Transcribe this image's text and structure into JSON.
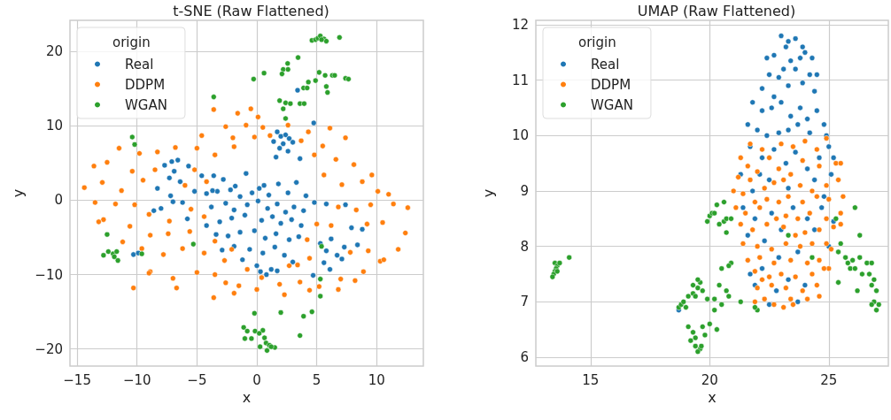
{
  "chart_data": [
    {
      "type": "scatter",
      "title": "t-SNE (Raw Flattened)",
      "xlabel": "x",
      "ylabel": "y",
      "legend_title": "origin",
      "legend": "top left",
      "grid": true,
      "marker": "circle",
      "xlim": [
        -15.6,
        13.9
      ],
      "ylim": [
        -22.3,
        24.2
      ],
      "xticks": [
        {
          "value": -15,
          "label": "−15"
        },
        {
          "value": -10,
          "label": "−10"
        },
        {
          "value": -5,
          "label": "−5"
        },
        0,
        5,
        10
      ],
      "yticks": [
        {
          "value": -20,
          "label": "−20"
        },
        {
          "value": -10,
          "label": "−10"
        },
        0,
        10,
        20
      ],
      "series": [
        {
          "name": "Real",
          "color": "#1f77b4",
          "x": [
            1.7,
            2.0,
            2.4,
            2.7,
            1.4,
            2.2,
            3.0,
            1.9,
            2.6,
            3.6,
            1.6,
            3.4,
            4.75,
            -7.1,
            -6.6,
            -7.7,
            -6.9,
            -7.3,
            -5.7,
            -4.6,
            -5.2,
            -6.4,
            -8.3,
            -7.2,
            -6.2,
            -8.0,
            -8.6,
            -5.8,
            -7.0,
            -3.6,
            -2.8,
            -1.8,
            -0.9,
            0.6,
            -2.2,
            -3.3,
            -4.2,
            -1.4,
            -0.4,
            0.2,
            1.0,
            1.8,
            2.6,
            3.3,
            4.1,
            -3.8,
            -2.6,
            -1.9,
            -0.8,
            0.1,
            0.9,
            1.7,
            2.4,
            3.1,
            3.9,
            4.8,
            5.8,
            -4.2,
            -3.1,
            -2.1,
            -1.0,
            0.4,
            1.3,
            2.0,
            2.9,
            3.7,
            -3.4,
            -2.4,
            -1.4,
            -0.2,
            0.7,
            1.6,
            2.7,
            3.5,
            -1.9,
            -0.6,
            0.5,
            1.5,
            2.3,
            -1.2,
            0.0,
            1.2,
            0.3,
            0.8,
            1.7,
            3.0,
            -2.9,
            5.3,
            6.2,
            5.8,
            6.7,
            5.6,
            6.1,
            7.1,
            7.3,
            8.4,
            4.7,
            7.9,
            8.8,
            7.4,
            -10.3,
            -3.7,
            -9.9
          ],
          "values": [
            9.2,
            8.6,
            8.8,
            8.3,
            7.9,
            7.6,
            7.8,
            7.0,
            6.6,
            5.6,
            5.8,
            14.8,
            10.4,
            5.2,
            5.4,
            4.7,
            3.9,
            3.0,
            4.6,
            3.3,
            1.2,
            2.5,
            1.6,
            0.6,
            -0.3,
            -1.1,
            -1.4,
            -2.5,
            -0.2,
            3.3,
            2.8,
            1.9,
            3.6,
            2.0,
            1.4,
            1.2,
            0.9,
            0.5,
            1.0,
            1.6,
            0.7,
            2.2,
            1.0,
            2.4,
            0.6,
            -0.9,
            -0.4,
            -1.3,
            -0.6,
            -0.1,
            -1.1,
            -0.5,
            -1.6,
            -0.9,
            -1.4,
            -0.3,
            -0.5,
            -3.4,
            -2.9,
            -2.4,
            -2.0,
            -2.7,
            -2.2,
            -3.1,
            -2.6,
            -3.4,
            -4.6,
            -4.8,
            -4.3,
            -4.1,
            -5.1,
            -4.5,
            -5.3,
            -4.9,
            -6.2,
            -6.6,
            -7.1,
            -6.3,
            -7.4,
            -8.0,
            -8.8,
            -9.3,
            -9.6,
            -10.0,
            -9.5,
            -8.3,
            -6.7,
            -5.8,
            -5.2,
            -6.8,
            -7.4,
            -8.4,
            -9.3,
            -7.9,
            -6.3,
            -6.0,
            -10.1,
            -3.7,
            -3.9,
            -0.6,
            -7.3,
            1.3,
            -7.1
          ]
        },
        {
          "name": "DDPM",
          "color": "#ff7f0e",
          "x": [
            -2.6,
            -0.9,
            0.5,
            2.6,
            4.3,
            6.1,
            -3.6,
            -1.6,
            -0.5,
            0.1,
            -4.6,
            -2.0,
            -0.2,
            1.1,
            3.7,
            5.5,
            7.4,
            -11.5,
            -13.6,
            -12.5,
            -9.8,
            -8.3,
            -6.8,
            -5.0,
            -3.5,
            -1.9,
            4.8,
            6.6,
            8.1,
            9.6,
            -14.4,
            -12.9,
            -11.3,
            -9.5,
            -10.4,
            -8.5,
            -5.2,
            -6.0,
            -4.2,
            5.6,
            7.1,
            8.8,
            10.1,
            11.0,
            -13.5,
            -11.8,
            -10.2,
            -9.0,
            -7.3,
            -5.5,
            -4.4,
            6.8,
            8.3,
            9.5,
            11.4,
            12.6,
            -12.8,
            -10.6,
            -8.9,
            -7.4,
            -5.6,
            -3.5,
            -2.1,
            4.2,
            5.0,
            6.2,
            9.2,
            10.5,
            12.4,
            -11.2,
            -9.6,
            -7.8,
            -6.2,
            -4.4,
            -2.7,
            -0.8,
            2.7,
            4.4,
            7.8,
            9.3,
            11.8,
            10.3,
            -8.9,
            -7.0,
            -5.0,
            -3.5,
            -1.5,
            0.4,
            1.9,
            3.6,
            5.2,
            7.0,
            8.9,
            10.6,
            -10.3,
            -6.7,
            -3.6,
            -1.9,
            0.0,
            2.3,
            4.4,
            6.8,
            8.2,
            3.4,
            -2.6,
            -13.2,
            -9.0
          ],
          "values": [
            9.9,
            10.1,
            9.8,
            10.1,
            9.2,
            9.7,
            12.2,
            11.7,
            12.3,
            11.2,
            8.7,
            8.4,
            8.5,
            8.7,
            8.0,
            7.3,
            8.4,
            7.0,
            4.6,
            5.1,
            6.3,
            6.5,
            7.1,
            7.0,
            6.1,
            7.2,
            6.1,
            5.5,
            4.8,
            3.4,
            1.7,
            2.4,
            1.3,
            2.7,
            3.9,
            4.1,
            4.1,
            2.0,
            2.5,
            3.4,
            2.1,
            2.5,
            1.2,
            0.8,
            -0.3,
            -0.5,
            -0.6,
            -1.9,
            -2.8,
            -1.2,
            -2.2,
            -0.9,
            -1.3,
            -0.6,
            -0.5,
            -1.0,
            -2.6,
            -3.5,
            -4.7,
            -4.5,
            -4.2,
            -5.5,
            -6.6,
            -5.3,
            -3.2,
            -3.4,
            -3.2,
            -3.0,
            -4.4,
            -5.6,
            -6.5,
            -7.3,
            -6.5,
            -7.1,
            -8.1,
            -9.3,
            -8.8,
            -7.8,
            -7.0,
            -6.8,
            -6.6,
            -8.2,
            -9.6,
            -10.5,
            -9.7,
            -10.0,
            -11.5,
            -10.4,
            -11.3,
            -11.0,
            -11.6,
            -10.6,
            -9.6,
            -8.0,
            -11.8,
            -11.8,
            -13.1,
            -12.5,
            -12.0,
            -12.7,
            -12.1,
            -12.0,
            -10.8,
            -8.7,
            -11.1,
            -2.9,
            -9.8
          ]
        },
        {
          "name": "WGAN",
          "color": "#2ca02c",
          "x": [
            4.6,
            4.9,
            5.1,
            5.3,
            5.6,
            5.8,
            6.9,
            5.4,
            3.44,
            2.57,
            2.2,
            2.6,
            2.1,
            0.6,
            -0.27,
            5.2,
            5.7,
            6.3,
            6.5,
            7.4,
            7.65,
            4.9,
            4.3,
            3.9,
            4.2,
            5.8,
            5.9,
            -3.6,
            1.9,
            2.4,
            2.8,
            2.2,
            3.6,
            3.95,
            2.4,
            -10.4,
            -10.2,
            -12.5,
            -12.8,
            -12.4,
            -12.0,
            -11.7,
            -11.9,
            -11.6,
            -9.6,
            -5.3,
            5.4,
            5.3,
            5.3,
            -0.2,
            2.0,
            3.9,
            4.6,
            3.6,
            -1.1,
            -0.8,
            -0.15,
            0.5,
            0.2,
            -1.0,
            -0.45,
            0.64,
            0.77,
            1.04,
            1.5,
            0.27,
            0.85,
            1.2
          ],
          "values": [
            21.5,
            21.6,
            21.8,
            22.1,
            21.7,
            21.4,
            21.9,
            21.6,
            19.2,
            18.4,
            17.6,
            17.6,
            17.0,
            17.1,
            16.3,
            17.2,
            16.8,
            16.8,
            16.8,
            16.4,
            16.3,
            16.1,
            15.9,
            15.1,
            15.1,
            15.3,
            14.5,
            13.9,
            13.4,
            13.1,
            13.0,
            12.3,
            13.0,
            13.0,
            11.0,
            8.5,
            7.5,
            -4.6,
            -7.4,
            -6.9,
            -7.2,
            -6.9,
            -7.6,
            -8.1,
            -7.2,
            -5.9,
            -6.2,
            -10.6,
            -12.9,
            -15.2,
            -15.1,
            -15.6,
            -15.0,
            -18.2,
            -17.1,
            -17.6,
            -17.6,
            -17.5,
            -17.9,
            -18.6,
            -18.6,
            -18.5,
            -19.2,
            -19.5,
            -19.8,
            -19.7,
            -20.2,
            -19.7
          ]
        }
      ]
    },
    {
      "type": "scatter",
      "title": "UMAP (Raw Flattened)",
      "xlabel": "x",
      "ylabel": "y",
      "legend_title": "origin",
      "legend": "top left",
      "grid": true,
      "marker": "circle",
      "xlim": [
        12.7,
        27.5
      ],
      "ylim": [
        5.84,
        12.08
      ],
      "xticks": [
        15,
        20,
        25
      ],
      "yticks": [
        6,
        7,
        8,
        9,
        10,
        11,
        12
      ],
      "series": [
        {
          "name": "Real",
          "color": "#1f77b4",
          "x": [
            23.0,
            23.3,
            23.6,
            23.2,
            23.9,
            24.0,
            23.8,
            22.4,
            22.7,
            23.4,
            24.3,
            23.1,
            22.5,
            22.9,
            23.6,
            24.2,
            24.5,
            22.2,
            22.7,
            23.3,
            23.9,
            24.4,
            21.8,
            22.2,
            22.6,
            23.0,
            23.4,
            23.8,
            24.1,
            24.5,
            24.8,
            21.6,
            22.0,
            22.4,
            22.9,
            23.3,
            23.7,
            24.2,
            24.9,
            21.7,
            22.2,
            22.7,
            23.2,
            23.6,
            24.1,
            25.0,
            25.2,
            21.3,
            21.8,
            22.5,
            23.3,
            24.4,
            25.1,
            21.4,
            21.9,
            22.6,
            23.5,
            24.1,
            24.7,
            25.2,
            21.6,
            22.3,
            23.0,
            24.4,
            25.0,
            22.9,
            23.7,
            21.7,
            22.2,
            22.8,
            23.3,
            24.0,
            22.5,
            21.9,
            19.4,
            18.7,
            23.7,
            24.8,
            24.6,
            22.1
          ],
          "values": [
            11.8,
            11.7,
            11.75,
            11.6,
            11.6,
            11.5,
            11.4,
            11.4,
            11.45,
            11.35,
            11.4,
            11.2,
            11.1,
            11.05,
            11.2,
            11.1,
            11.1,
            10.85,
            10.7,
            10.9,
            10.95,
            10.8,
            10.6,
            10.45,
            10.5,
            10.6,
            10.35,
            10.5,
            10.3,
            10.45,
            10.2,
            10.2,
            10.1,
            10.0,
            10.05,
            10.1,
            10.2,
            10.05,
            10.0,
            9.8,
            9.6,
            9.75,
            9.5,
            9.7,
            9.4,
            9.8,
            9.6,
            9.3,
            9.0,
            9.2,
            9.05,
            9.2,
            9.3,
            8.7,
            8.5,
            8.6,
            8.7,
            8.5,
            8.7,
            8.45,
            8.2,
            8.1,
            8.3,
            8.3,
            8.0,
            7.8,
            7.9,
            7.5,
            7.6,
            7.2,
            7.4,
            7.3,
            6.95,
            7.3,
            7.1,
            6.85,
            7.0,
            8.9,
            9.6,
            9.3
          ]
        },
        {
          "name": "DDPM",
          "color": "#ff7f0e",
          "x": [
            21.7,
            22.2,
            22.5,
            23.0,
            23.5,
            24.0,
            24.5,
            24.9,
            21.3,
            21.6,
            22.0,
            22.9,
            23.4,
            23.9,
            24.6,
            25.3,
            25.5,
            21.2,
            21.7,
            22.3,
            22.7,
            23.1,
            23.8,
            24.3,
            24.9,
            25.4,
            21.0,
            21.4,
            21.9,
            22.4,
            22.9,
            23.3,
            23.9,
            24.5,
            25.0,
            25.6,
            21.1,
            21.5,
            22.1,
            22.8,
            23.2,
            23.7,
            24.2,
            24.9,
            25.5,
            21.3,
            21.8,
            22.4,
            23.1,
            23.6,
            24.0,
            24.6,
            25.2,
            25.5,
            21.4,
            22.0,
            22.6,
            23.2,
            23.8,
            24.3,
            24.9,
            25.1,
            21.6,
            22.1,
            22.7,
            23.4,
            24.1,
            24.6,
            25.0,
            21.9,
            22.5,
            23.0,
            23.6,
            24.3,
            24.8,
            22.0,
            22.6,
            23.2,
            23.9,
            24.5,
            21.9,
            22.3,
            22.7,
            23.1,
            23.4,
            24.1,
            24.6,
            22.2,
            23.5
          ],
          "values": [
            9.85,
            9.75,
            9.6,
            9.85,
            9.8,
            9.9,
            9.75,
            9.95,
            9.6,
            9.45,
            9.35,
            9.4,
            9.3,
            9.55,
            9.45,
            9.5,
            9.5,
            9.25,
            9.2,
            9.05,
            9.15,
            9.2,
            9.1,
            9.0,
            9.1,
            9.2,
            9.0,
            8.95,
            8.8,
            8.85,
            8.8,
            8.9,
            8.8,
            8.9,
            8.85,
            8.9,
            8.7,
            8.6,
            8.7,
            8.5,
            8.55,
            8.5,
            8.6,
            8.5,
            8.6,
            8.4,
            8.3,
            8.4,
            8.35,
            8.2,
            8.25,
            8.3,
            8.35,
            8.4,
            8.05,
            8.0,
            7.95,
            8.05,
            8.0,
            8.05,
            8.05,
            7.95,
            7.75,
            7.8,
            7.7,
            7.75,
            7.7,
            7.75,
            7.6,
            7.55,
            7.45,
            7.5,
            7.45,
            7.5,
            7.6,
            7.25,
            7.3,
            7.25,
            7.2,
            7.3,
            7.0,
            7.05,
            6.95,
            6.9,
            7.05,
            7.05,
            7.1,
            7.4,
            6.95
          ]
        },
        {
          "name": "WGAN",
          "color": "#2ca02c",
          "x": [
            13.5,
            13.6,
            13.55,
            13.5,
            13.45,
            13.4,
            13.6,
            13.7,
            14.1,
            18.7,
            18.8,
            19.0,
            18.9,
            19.1,
            19.3,
            19.5,
            19.6,
            19.3,
            19.7,
            19.5,
            19.4,
            19.1,
            19.3,
            19.4,
            19.2,
            19.4,
            19.6,
            19.65,
            19.5,
            19.7,
            19.8,
            20.0,
            20.3,
            19.9,
            20.0,
            20.1,
            20.2,
            20.3,
            20.4,
            20.6,
            20.7,
            20.9,
            20.7,
            20.6,
            20.5,
            20.9,
            20.8,
            20.7,
            20.8,
            20.4,
            20.2,
            20.5,
            20.2,
            19.9,
            21.3,
            22.0,
            21.9,
            23.3,
            24.3,
            25.3,
            25.5,
            25.4,
            25.7,
            25.9,
            25.8,
            26.0,
            26.3,
            26.1,
            26.4,
            26.6,
            26.8,
            26.7,
            26.9,
            26.8,
            27.0,
            26.9,
            26.8,
            27.0,
            27.1,
            25.4,
            26.2,
            26.1,
            26.3
          ],
          "values": [
            7.7,
            7.65,
            7.6,
            7.55,
            7.5,
            7.45,
            7.55,
            7.7,
            7.8,
            6.9,
            6.95,
            6.9,
            7.0,
            7.1,
            7.15,
            7.25,
            7.35,
            7.3,
            7.2,
            7.4,
            7.1,
            6.55,
            6.45,
            6.35,
            6.3,
            6.2,
            6.15,
            6.2,
            6.1,
            6.55,
            6.4,
            6.6,
            6.5,
            8.45,
            8.55,
            8.6,
            8.6,
            8.75,
            8.4,
            8.45,
            8.5,
            8.5,
            8.25,
            8.8,
            7.6,
            7.7,
            7.65,
            7.2,
            7.1,
            7.3,
            7.05,
            6.95,
            6.85,
            7.05,
            7.0,
            6.85,
            6.9,
            8.2,
            7.8,
            8.5,
            8.05,
            7.9,
            7.8,
            7.6,
            7.7,
            7.75,
            7.8,
            7.6,
            7.5,
            7.7,
            7.7,
            7.5,
            7.4,
            7.3,
            7.2,
            7.0,
            6.95,
            6.85,
            6.95,
            7.35,
            7.2,
            8.7,
            8.2
          ]
        }
      ]
    }
  ]
}
